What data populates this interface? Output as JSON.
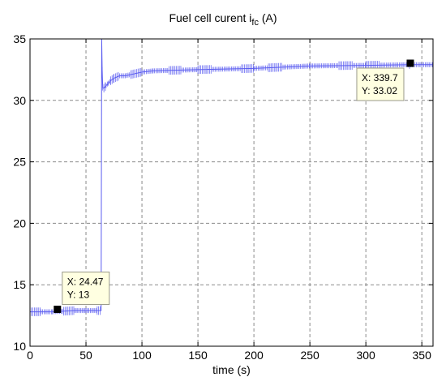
{
  "chart_data": {
    "type": "line",
    "title": "Fuel cell curent i",
    "title_subscript": "fc",
    "title_suffix": " (A)",
    "xlabel": "time (s)",
    "ylabel": "",
    "xlim": [
      0,
      360
    ],
    "ylim": [
      10,
      35
    ],
    "xticks": [
      "0",
      "50",
      "100",
      "150",
      "200",
      "250",
      "300",
      "350"
    ],
    "yticks": [
      "10",
      "15",
      "20",
      "25",
      "30",
      "35"
    ],
    "grid": true,
    "colors": {
      "line": "#5a5cf0",
      "marker": "#000000",
      "tip_bg": "#ffffe1",
      "tip_border": "#9a9a8a"
    },
    "series": [
      {
        "x": [
          0,
          10,
          20,
          30,
          40,
          50,
          60,
          63.5,
          64,
          64.5,
          65,
          66,
          68,
          70,
          72,
          75,
          80,
          85,
          90,
          100,
          110,
          150,
          200,
          250,
          300,
          340,
          360
        ],
        "y": [
          12.8,
          12.8,
          12.8,
          12.85,
          12.9,
          12.9,
          12.9,
          12.9,
          35,
          32.5,
          31.0,
          31.0,
          31.2,
          31.4,
          31.6,
          31.8,
          32.0,
          32.0,
          32.1,
          32.3,
          32.4,
          32.5,
          32.6,
          32.8,
          32.85,
          32.9,
          32.9
        ]
      }
    ],
    "datatips": [
      {
        "x": 24.47,
        "y": 13,
        "x_text": "X: 24.47",
        "y_text": "Y: 13"
      },
      {
        "x": 339.7,
        "y": 33.02,
        "x_text": "X: 339.7",
        "y_text": "Y: 33.02"
      }
    ]
  }
}
